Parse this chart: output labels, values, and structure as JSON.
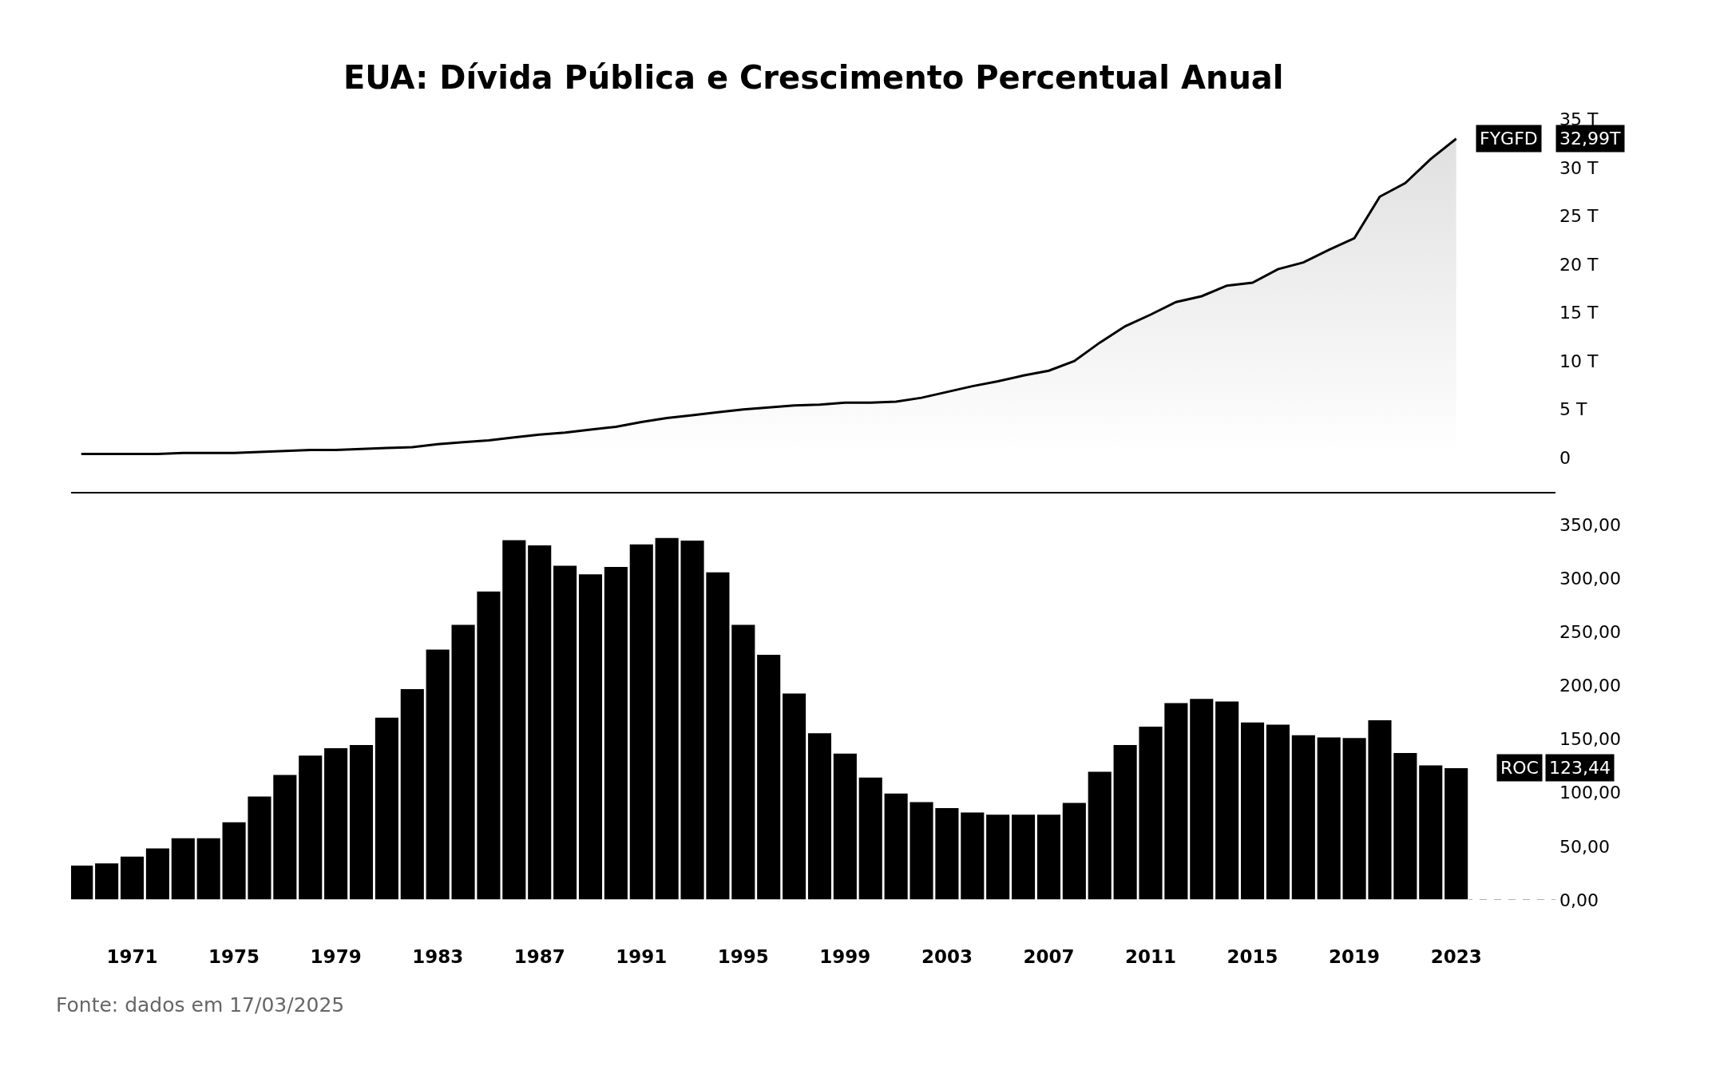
{
  "chart_data": [
    {
      "type": "area",
      "title": "EUA: Dívida Pública e Crescimento Percentual Anual",
      "tick_labels": "y",
      "legend": "right",
      "x": [
        1969,
        1970,
        1971,
        1972,
        1973,
        1974,
        1975,
        1976,
        1977,
        1978,
        1979,
        1980,
        1981,
        1982,
        1983,
        1984,
        1985,
        1986,
        1987,
        1988,
        1989,
        1990,
        1991,
        1992,
        1993,
        1994,
        1995,
        1996,
        1997,
        1998,
        1999,
        2000,
        2001,
        2002,
        2003,
        2004,
        2005,
        2006,
        2007,
        2008,
        2009,
        2010,
        2011,
        2012,
        2013,
        2014,
        2015,
        2016,
        2017,
        2018,
        2019,
        2020,
        2021,
        2022,
        2023
      ],
      "xlim": [
        1968.6,
        2026.9
      ],
      "ylim": [
        -3.5,
        35
      ],
      "yticks": [
        0,
        {
          "value": 5,
          "label": "5 T"
        },
        {
          "value": 10,
          "label": "10 T"
        },
        {
          "value": 15,
          "label": "15 T"
        },
        {
          "value": 20,
          "label": "20 T"
        },
        {
          "value": 25,
          "label": "25 T"
        },
        {
          "value": 30,
          "label": "30 T"
        },
        {
          "value": 35,
          "label": "35 T"
        }
      ],
      "series": [
        {
          "name": "FYGFD",
          "color": "#000000",
          "values": [
            0.4,
            0.4,
            0.4,
            0.4,
            0.5,
            0.5,
            0.5,
            0.6,
            0.7,
            0.8,
            0.8,
            0.9,
            1.0,
            1.1,
            1.4,
            1.6,
            1.8,
            2.1,
            2.4,
            2.6,
            2.9,
            3.2,
            3.7,
            4.1,
            4.4,
            4.7,
            5.0,
            5.2,
            5.4,
            5.5,
            5.7,
            5.7,
            5.8,
            6.2,
            6.8,
            7.4,
            7.9,
            8.5,
            9.0,
            10.0,
            11.9,
            13.6,
            14.8,
            16.1,
            16.7,
            17.8,
            18.1,
            19.5,
            20.2,
            21.5,
            22.7,
            27.0,
            28.4,
            30.9,
            32.99
          ]
        }
      ],
      "annotations": [
        "32,99T"
      ]
    },
    {
      "type": "bar",
      "legend": "right",
      "x": [
        1969,
        1970,
        1971,
        1972,
        1973,
        1974,
        1975,
        1976,
        1977,
        1978,
        1979,
        1980,
        1981,
        1982,
        1983,
        1984,
        1985,
        1986,
        1987,
        1988,
        1989,
        1990,
        1991,
        1992,
        1993,
        1994,
        1995,
        1996,
        1997,
        1998,
        1999,
        2000,
        2001,
        2002,
        2003,
        2004,
        2005,
        2006,
        2007,
        2008,
        2009,
        2010,
        2011,
        2012,
        2013,
        2014,
        2015,
        2016,
        2017,
        2018,
        2019,
        2020,
        2021,
        2022,
        2023
      ],
      "xlim": [
        1968.6,
        2026.9
      ],
      "xticks": [
        1971,
        1975,
        1979,
        1983,
        1987,
        1991,
        1995,
        1999,
        2003,
        2007,
        2011,
        2015,
        2019,
        2023
      ],
      "ylim": [
        0,
        350
      ],
      "yticks": [
        {
          "value": 0,
          "label": "0,00"
        },
        {
          "value": 50,
          "label": "50,00"
        },
        {
          "value": 100,
          "label": "100,00"
        },
        {
          "value": 150,
          "label": "150,00"
        },
        {
          "value": 200,
          "label": "200,00"
        },
        {
          "value": 250,
          "label": "250,00"
        },
        {
          "value": 300,
          "label": "300,00"
        },
        {
          "value": 350,
          "label": "350,00"
        }
      ],
      "ref_lines": [
        {
          "axis": "y",
          "value": 0,
          "color": "#999999",
          "line_style": "dashed"
        }
      ],
      "annotations": [
        "123,44",
        "Fonte: dados em 17/03/2025"
      ],
      "series": [
        {
          "name": "ROC",
          "color": "#000000",
          "values": [
            32.6,
            34.5,
            41,
            48.5,
            58,
            58,
            73,
            97,
            117,
            135,
            142,
            145,
            170.5,
            197,
            234,
            257,
            288,
            336,
            331,
            312,
            304,
            311,
            332,
            338,
            335.5,
            306,
            257,
            229,
            193,
            156,
            137,
            114.6,
            99.7,
            91.8,
            86.2,
            82,
            80,
            80,
            80,
            91,
            120,
            145,
            162,
            184,
            188,
            185.5,
            166,
            164,
            154,
            152,
            151.5,
            168,
            137.5,
            126,
            123.44
          ]
        }
      ]
    }
  ]
}
